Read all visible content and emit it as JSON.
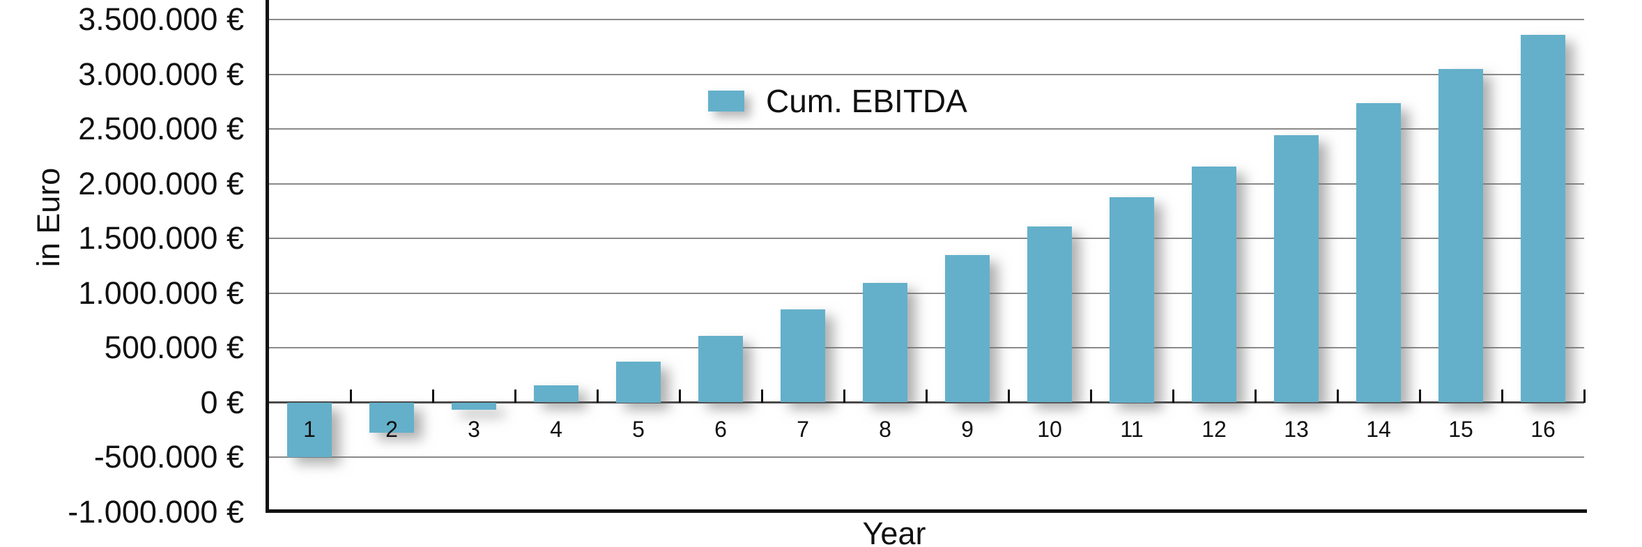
{
  "chart_data": {
    "type": "bar",
    "title": "",
    "xlabel": "Year",
    "ylabel": "in Euro",
    "categories": [
      "1",
      "2",
      "3",
      "4",
      "5",
      "6",
      "7",
      "8",
      "9",
      "10",
      "11",
      "12",
      "13",
      "14",
      "15",
      "16"
    ],
    "series": [
      {
        "name": "Cum. EBITDA",
        "values": [
          -500000,
          -280000,
          -70000,
          155000,
          375000,
          610000,
          850000,
          1090000,
          1345000,
          1610000,
          1875000,
          2155000,
          2440000,
          2735000,
          3045000,
          3360000
        ]
      }
    ],
    "y_axis": {
      "min": -1000000,
      "max_visible": 3675000,
      "tick_step": 500000,
      "ticks": [
        {
          "value": 3500000,
          "label": "3.500.000 €"
        },
        {
          "value": 3000000,
          "label": "3.000.000 €"
        },
        {
          "value": 2500000,
          "label": "2.500.000 €"
        },
        {
          "value": 2000000,
          "label": "2.000.000 €"
        },
        {
          "value": 1500000,
          "label": "1.500.000 €"
        },
        {
          "value": 1000000,
          "label": "1.000.000 €"
        },
        {
          "value": 500000,
          "label": "500.000 €"
        },
        {
          "value": 0,
          "label": "0 €"
        },
        {
          "value": -500000,
          "label": "-500.000 €"
        },
        {
          "value": -1000000,
          "label": "-1.000.000 €"
        }
      ]
    },
    "legend": {
      "label": "Cum. EBITDA",
      "position": "inside-top-center"
    },
    "grid": true,
    "number_format": "de-EUR"
  },
  "colors": {
    "bar": "#64b0ca",
    "gridline": "#8a8a8a",
    "zero_line": "#4a4a4a",
    "axis": "#111111",
    "text": "#111111",
    "background": "#ffffff"
  }
}
